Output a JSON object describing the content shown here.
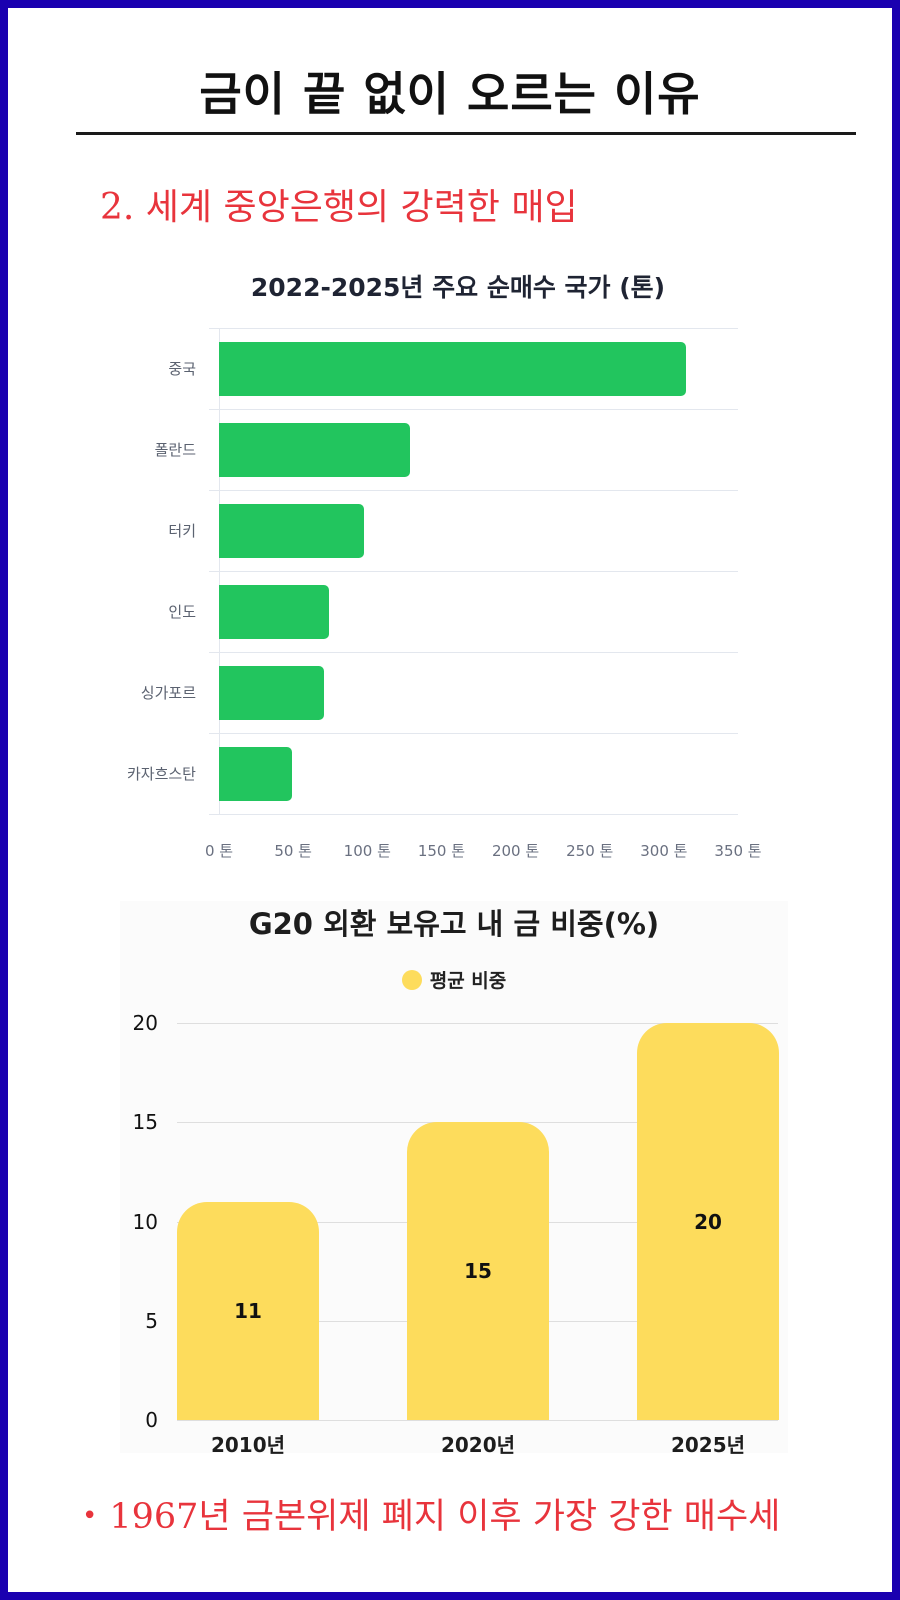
{
  "header": {
    "title": "금이 끝 없이 오르는 이유",
    "section_heading": "2. 세계 중앙은행의 강력한 매입"
  },
  "footnote": {
    "bullet": "•",
    "text": "1967년 금본위제 폐지 이후 가장 강한 매수세"
  },
  "colors": {
    "border": "#1a00b0",
    "heading_red": "#e8343c",
    "bar_green": "#22c55e",
    "bar_yellow": "#fddc5c"
  },
  "chart_data": [
    {
      "type": "bar",
      "orientation": "horizontal",
      "title": "2022-2025년 주요 순매수 국가 (톤)",
      "categories": [
        "중국",
        "폴란드",
        "터키",
        "인도",
        "싱가포르",
        "카자흐스탄"
      ],
      "values": [
        315,
        129,
        98,
        74,
        71,
        49
      ],
      "xlabel": "",
      "ylabel": "",
      "xlim": [
        0,
        350
      ],
      "xticks": [
        "0 톤",
        "50 톤",
        "100 톤",
        "150 톤",
        "200 톤",
        "250 톤",
        "300 톤",
        "350 톤"
      ],
      "grid": true,
      "color": "#22c55e"
    },
    {
      "type": "bar",
      "orientation": "vertical",
      "title": "G20 외환 보유고 내 금 비중(%)",
      "categories": [
        "2010년",
        "2020년",
        "2025년"
      ],
      "series": [
        {
          "name": "평균 비중",
          "values": [
            11,
            15,
            20
          ]
        }
      ],
      "data_labels": [
        "11",
        "15",
        "20"
      ],
      "ylim": [
        0,
        20
      ],
      "yticks": [
        "0",
        "5",
        "10",
        "15",
        "20"
      ],
      "legend_position": "top",
      "grid": true,
      "color": "#fddc5c"
    }
  ]
}
